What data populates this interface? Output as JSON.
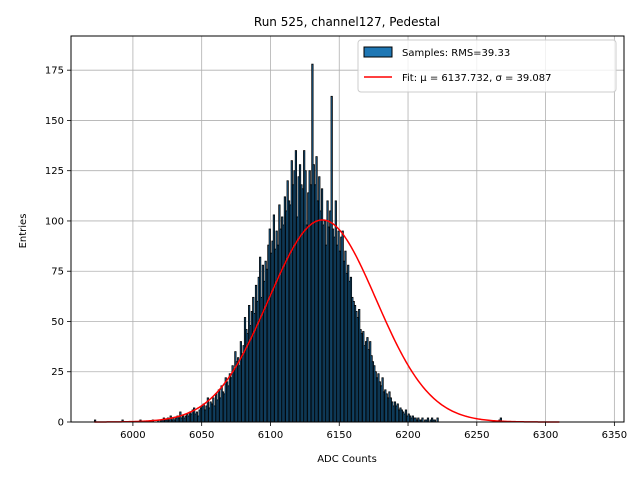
{
  "chart_data": {
    "type": "bar",
    "title": "Run 525, channel127, Pedestal",
    "xlabel": "ADC Counts",
    "ylabel": "Entries",
    "xlim": [
      5955,
      6357
    ],
    "ylim": [
      0,
      192
    ],
    "xticks": [
      6000,
      6050,
      6100,
      6150,
      6200,
      6250,
      6300,
      6350
    ],
    "yticks": [
      0,
      25,
      50,
      75,
      100,
      125,
      150,
      175
    ],
    "grid": true,
    "legend_position": "top-right",
    "series": [
      {
        "name": "Samples: RMS=39.33",
        "kind": "histogram",
        "color": "#1f77b4",
        "edge_color": "#000000",
        "x_start": 5972,
        "bin_width": 1,
        "values": [
          1,
          0,
          0,
          0,
          0,
          0,
          0,
          0,
          0,
          0,
          0,
          0,
          0,
          0,
          0,
          0,
          0,
          0,
          0,
          0,
          1,
          0,
          0,
          0,
          0,
          0,
          0,
          0,
          0,
          0,
          0,
          0,
          0,
          1,
          0,
          0,
          0,
          0,
          0,
          0,
          0,
          0,
          1,
          0,
          0,
          0,
          1,
          0,
          1,
          1,
          2,
          1,
          1,
          2,
          1,
          3,
          1,
          2,
          1,
          2,
          3,
          2,
          5,
          2,
          3,
          2,
          3,
          4,
          3,
          5,
          4,
          6,
          7,
          4,
          5,
          3,
          6,
          7,
          8,
          9,
          6,
          8,
          12,
          7,
          10,
          9,
          12,
          8,
          14,
          11,
          16,
          12,
          18,
          15,
          14,
          22,
          20,
          18,
          24,
          22,
          28,
          26,
          35,
          30,
          32,
          28,
          40,
          34,
          38,
          52,
          46,
          44,
          58,
          48,
          55,
          62,
          54,
          68,
          60,
          72,
          82,
          62,
          78,
          70,
          80,
          76,
          88,
          96,
          84,
          90,
          103,
          86,
          95,
          88,
          108,
          96,
          102,
          98,
          112,
          105,
          120,
          110,
          108,
          130,
          118,
          125,
          135,
          102,
          122,
          128,
          118,
          116,
          135,
          125,
          98,
          114,
          125,
          118,
          178,
          128,
          118,
          132,
          110,
          122,
          105,
          116,
          98,
          100,
          88,
          110,
          97,
          105,
          162,
          96,
          92,
          110,
          88,
          95,
          85,
          92,
          95,
          80,
          85,
          74,
          78,
          70,
          72,
          62,
          60,
          58,
          55,
          52,
          56,
          46,
          44,
          45,
          38,
          40,
          42,
          36,
          40,
          33,
          30,
          28,
          25,
          22,
          24,
          20,
          18,
          22,
          15,
          16,
          14,
          12,
          15,
          12,
          10,
          8,
          10,
          8,
          9,
          6,
          7,
          6,
          5,
          4,
          6,
          3,
          4,
          3,
          2,
          3,
          2,
          2,
          1,
          2,
          1,
          1,
          2,
          0,
          1,
          1,
          2,
          0,
          1,
          2,
          1,
          1,
          0,
          2,
          0,
          0,
          0,
          0,
          0,
          0,
          0,
          0,
          0,
          0,
          0,
          0,
          0,
          0,
          0,
          0,
          0,
          0,
          0,
          0,
          0,
          0,
          0,
          0,
          0,
          0,
          0,
          0,
          0,
          0,
          0,
          0,
          0,
          0,
          0,
          0,
          0,
          0,
          0,
          0,
          0,
          0,
          0,
          0,
          1,
          2
        ]
      },
      {
        "name": "Fit: μ = 6137.732, σ = 39.087",
        "kind": "gaussian_fit",
        "color": "#ff0000",
        "mu": 6137.732,
        "sigma": 39.087,
        "amplitude": 100.5,
        "x_range": [
          5972,
          6310
        ]
      }
    ]
  }
}
